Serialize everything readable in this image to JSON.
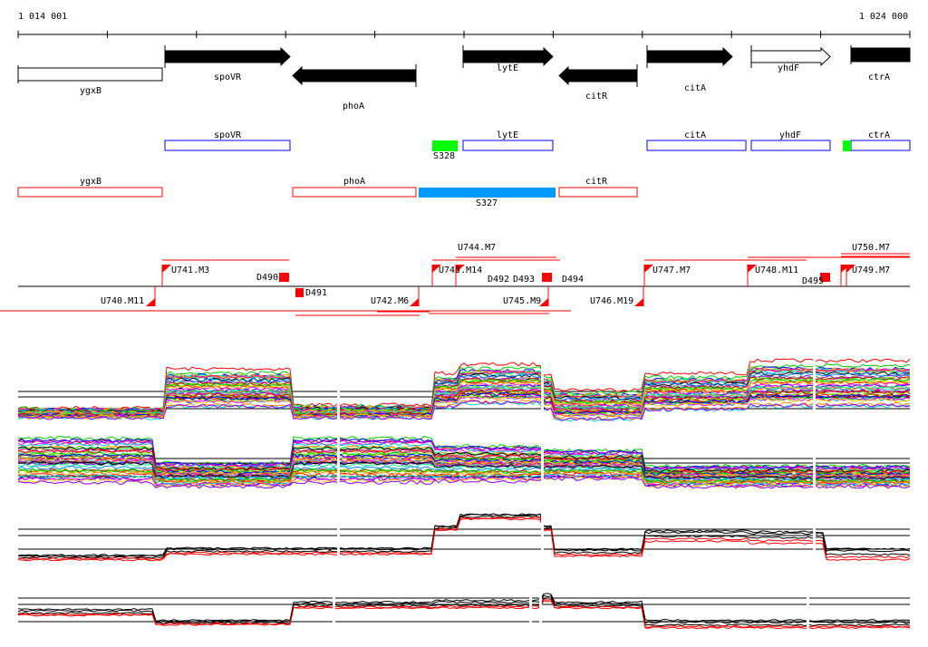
{
  "ruler": {
    "start_label": "1 014 001",
    "end_label": "1 024 000"
  },
  "genes": [
    {
      "name": "ygxB",
      "strand": "-",
      "filled": false
    },
    {
      "name": "spoVR",
      "strand": "+",
      "filled": true
    },
    {
      "name": "phoA",
      "strand": "-",
      "filled": true
    },
    {
      "name": "lytE",
      "strand": "+",
      "filled": true
    },
    {
      "name": "citR",
      "strand": "-",
      "filled": true
    },
    {
      "name": "citA",
      "strand": "+",
      "filled": true
    },
    {
      "name": "yhdF",
      "strand": "+",
      "filled": false
    },
    {
      "name": "ctrA",
      "strand": "+",
      "filled": true
    }
  ],
  "annotation_forward": [
    {
      "name": "spoVR"
    },
    {
      "name": "lytE"
    },
    {
      "name": "citA"
    },
    {
      "name": "yhdF"
    },
    {
      "name": "ctrA"
    }
  ],
  "annotation_reverse": [
    {
      "name": "ygxB"
    },
    {
      "name": "phoA"
    },
    {
      "name": "citR"
    }
  ],
  "segments": {
    "forward": "S328",
    "reverse": "S327"
  },
  "segment_colors": {
    "forward": "#00ff00",
    "reverse": "#0099ff",
    "forward_box": "#0000ff",
    "reverse_box": "#ff0000"
  },
  "transcription_units": [
    "U740.M11",
    "U741.M3",
    "D490",
    "D491",
    "U742.M6",
    "U743.M14",
    "U744.M7",
    "D492",
    "D493",
    "D494",
    "U745.M9",
    "U746.M19",
    "U747.M7",
    "U748.M11",
    "D495",
    "U749.M7",
    "U750.M7"
  ]
}
